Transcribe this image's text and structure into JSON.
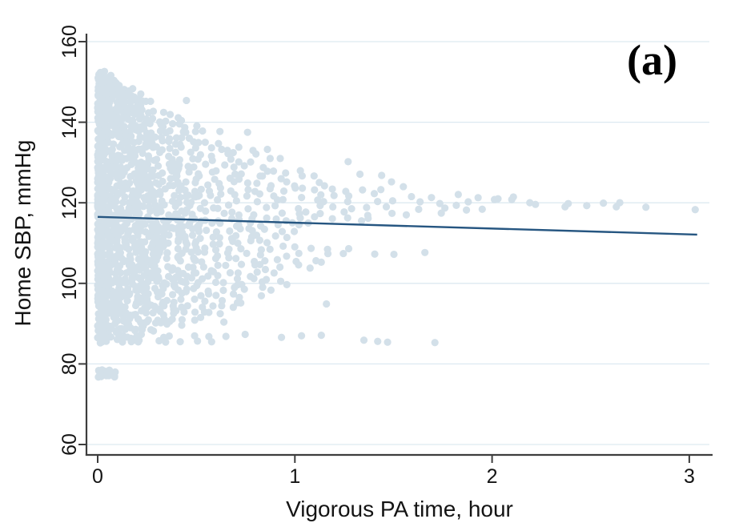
{
  "figure": {
    "panel_label": "(a)"
  },
  "colors": {
    "dot": "#d3e0e9",
    "fit_line": "#265681",
    "gridline": "#dde9f1",
    "axis": "#3d3d3d",
    "text": "#141414",
    "background": "#ffffff"
  },
  "chart_data": {
    "type": "scatter",
    "title": "",
    "xlabel": "Vigorous PA time, hour",
    "ylabel": "Home SBP, mmHg",
    "xlim": [
      -0.06,
      3.12
    ],
    "ylim": [
      57,
      161.5
    ],
    "x_ticks": [
      0,
      1,
      2,
      3
    ],
    "y_ticks": [
      60,
      80,
      100,
      120,
      140,
      160
    ],
    "grid": "horizontal",
    "legend": "none",
    "fit_line": {
      "x": [
        0,
        3.04
      ],
      "y": [
        116.5,
        112.1
      ]
    },
    "dense_column": {
      "y_min": 85.5,
      "y_max": 152.5,
      "row_step": 1.05,
      "dots_per_row": 6,
      "widths": [
        [
          90,
          0.25
        ],
        [
          96,
          0.4
        ],
        [
          122.5,
          0.52
        ],
        [
          130,
          0.42
        ],
        [
          140,
          0.3
        ],
        [
          146,
          0.22
        ],
        [
          153,
          0.1
        ]
      ]
    },
    "bands": [
      [
        152.3,
        0.04,
        5
      ],
      [
        150.9,
        0.07,
        7
      ],
      [
        149.4,
        0.12,
        9
      ],
      [
        148.0,
        0.18,
        11
      ],
      [
        146.5,
        0.22,
        12
      ],
      [
        145.2,
        0.28,
        13
      ],
      [
        143.6,
        0.24,
        13
      ],
      [
        142.2,
        0.37,
        15
      ],
      [
        140.6,
        0.45,
        16
      ],
      [
        139.2,
        0.52,
        17
      ],
      [
        137.8,
        0.56,
        18
      ],
      [
        136.3,
        0.49,
        18
      ],
      [
        134.9,
        0.62,
        19
      ],
      [
        133.5,
        0.93,
        22
      ],
      [
        132.0,
        0.81,
        21
      ],
      [
        130.5,
        0.96,
        23
      ],
      [
        129.1,
        0.86,
        22
      ],
      [
        127.6,
        1.1,
        24
      ],
      [
        126.2,
        1.14,
        25
      ],
      [
        124.7,
        1.21,
        28
      ],
      [
        123.3,
        1.46,
        34
      ],
      [
        121.8,
        2.12,
        36
      ],
      [
        120.3,
        2.8,
        38
      ],
      [
        118.9,
        1.93,
        36
      ],
      [
        117.4,
        1.77,
        35
      ],
      [
        116.0,
        1.43,
        33
      ],
      [
        114.5,
        1.13,
        31
      ],
      [
        113.1,
        1.01,
        30
      ],
      [
        111.6,
        0.98,
        29
      ],
      [
        110.2,
        0.91,
        28
      ],
      [
        108.7,
        1.31,
        28
      ],
      [
        107.2,
        1.77,
        29
      ],
      [
        105.8,
        1.19,
        27
      ],
      [
        104.3,
        1.11,
        26
      ],
      [
        102.9,
        0.96,
        25
      ],
      [
        101.4,
        0.91,
        24
      ],
      [
        100.0,
        1.01,
        24
      ],
      [
        98.5,
        0.93,
        22
      ],
      [
        97.0,
        0.86,
        21
      ],
      [
        95.6,
        0.79,
        19
      ],
      [
        94.1,
        0.71,
        17
      ],
      [
        92.7,
        0.66,
        16
      ],
      [
        91.2,
        0.56,
        14
      ],
      [
        89.8,
        0.43,
        13
      ],
      [
        88.3,
        0.3,
        11
      ],
      [
        87.0,
        1.2,
        16
      ],
      [
        85.6,
        0.63,
        10
      ]
    ],
    "extra_points": [
      [
        0.45,
        145.4
      ],
      [
        0.62,
        137.7
      ],
      [
        0.76,
        137.5
      ],
      [
        1.27,
        130.2
      ],
      [
        1.33,
        127.1
      ],
      [
        1.44,
        126.8
      ],
      [
        1.49,
        125.2
      ],
      [
        1.55,
        124.0
      ],
      [
        1.87,
        118.2
      ],
      [
        1.95,
        118.4
      ],
      [
        2.03,
        121.0
      ],
      [
        2.1,
        120.8
      ],
      [
        2.22,
        119.6
      ],
      [
        2.37,
        119.0
      ],
      [
        2.48,
        119.3
      ],
      [
        2.63,
        119.0
      ],
      [
        2.78,
        118.9
      ],
      [
        3.03,
        118.3
      ],
      [
        1.16,
        94.9
      ],
      [
        0.64,
        90.4
      ],
      [
        1.35,
        85.9
      ],
      [
        1.42,
        85.6
      ],
      [
        1.47,
        85.4
      ],
      [
        1.71,
        85.3
      ]
    ],
    "low_cluster": {
      "x": [
        0,
        0.09
      ],
      "y": [
        76.4,
        78.6
      ],
      "count": 16
    }
  }
}
